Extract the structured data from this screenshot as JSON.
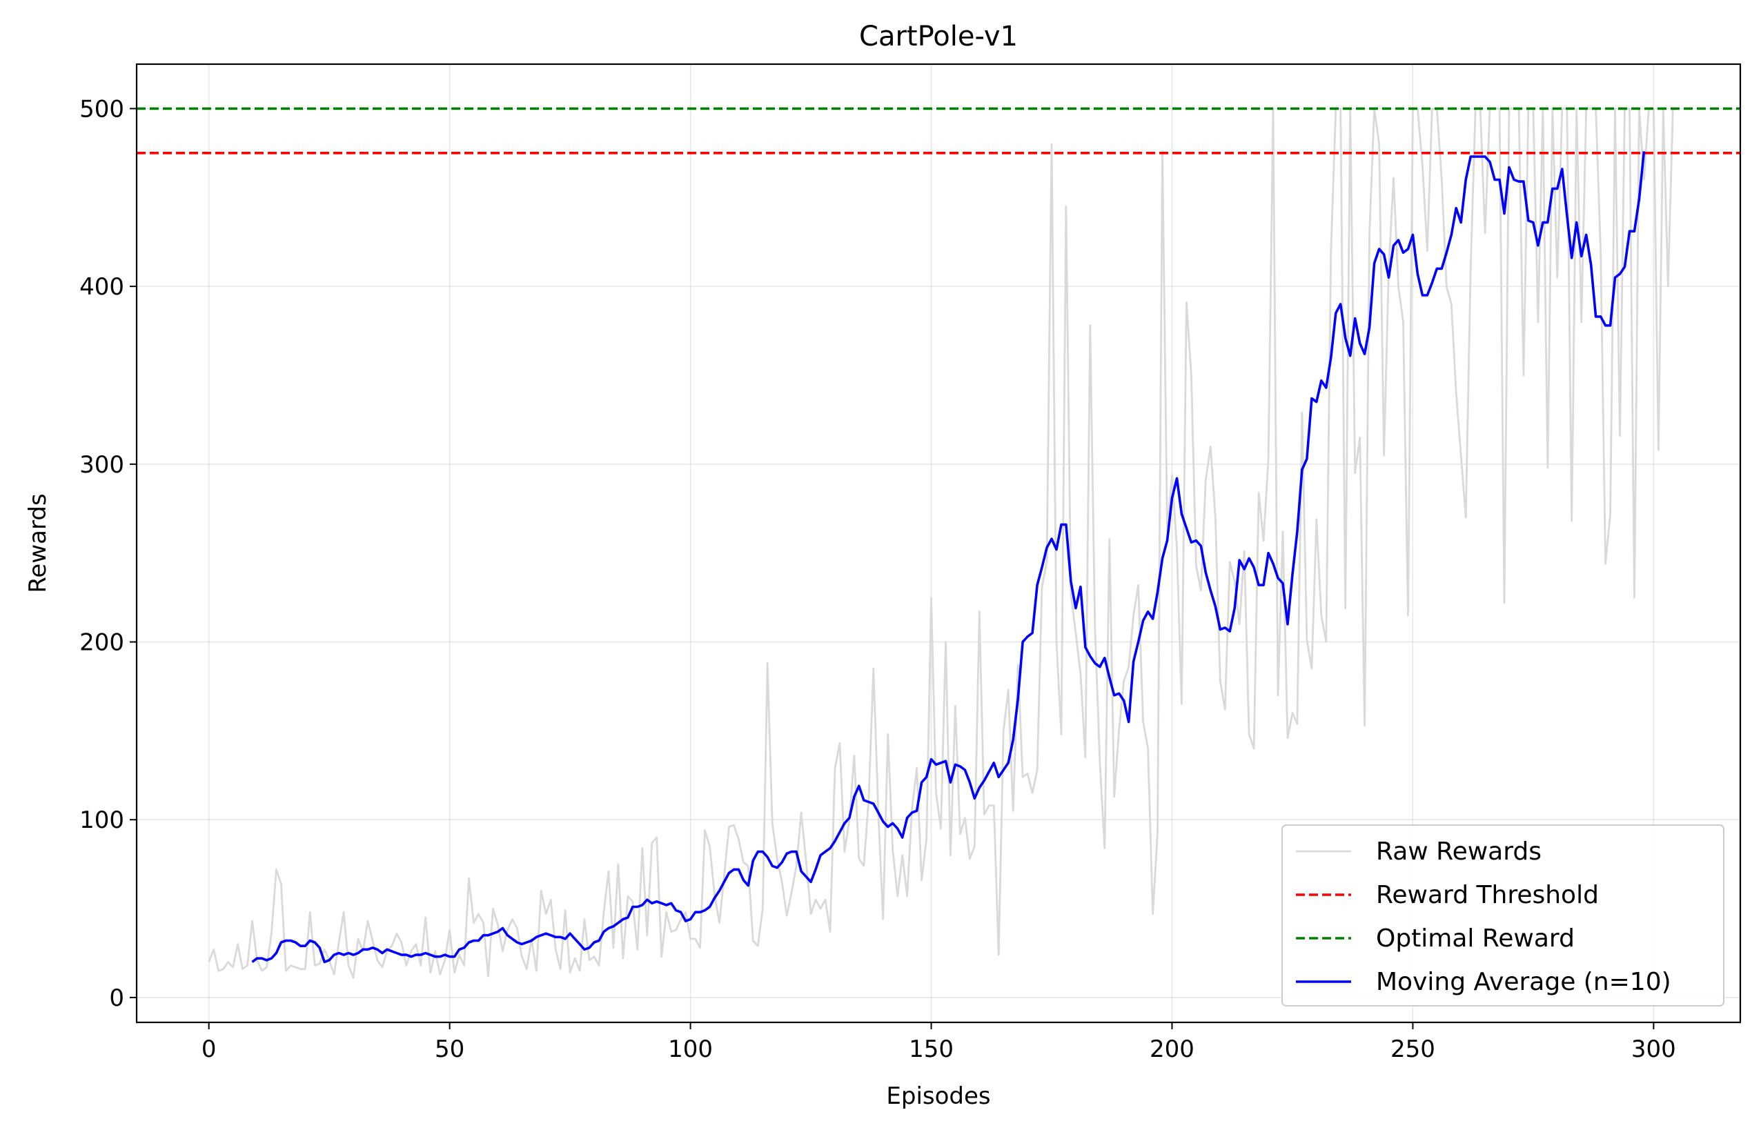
{
  "chart_data": {
    "type": "line",
    "title": "CartPole-v1",
    "xlabel": "Episodes",
    "ylabel": "Rewards",
    "xlim": [
      -15,
      318
    ],
    "ylim": [
      -14,
      525
    ],
    "x_ticks": [
      0,
      50,
      100,
      150,
      200,
      250,
      300
    ],
    "y_ticks": [
      0,
      100,
      200,
      300,
      400,
      500
    ],
    "grid": true,
    "legend_position": "bottom-right",
    "series": [
      {
        "name": "Raw Rewards",
        "style": "solid",
        "color": "#d9d9d9",
        "x_start": 0,
        "values": [
          20,
          27,
          15,
          16,
          20,
          17,
          30,
          16,
          18,
          43,
          21,
          15,
          17,
          36,
          72,
          64,
          15,
          18,
          17,
          16,
          16,
          48,
          18,
          19,
          27,
          21,
          13,
          31,
          48,
          18,
          11,
          33,
          26,
          43,
          32,
          21,
          17,
          26,
          29,
          36,
          31,
          18,
          26,
          30,
          18,
          45,
          14,
          26,
          13,
          21,
          38,
          14,
          24,
          18,
          67,
          42,
          47,
          42,
          12,
          50,
          41,
          26,
          38,
          44,
          39,
          23,
          16,
          33,
          15,
          60,
          47,
          55,
          27,
          16,
          49,
          14,
          22,
          15,
          44,
          21,
          23,
          18,
          48,
          71,
          28,
          75,
          22,
          57,
          54,
          27,
          84,
          35,
          87,
          90,
          23,
          48,
          37,
          38,
          44,
          48,
          33,
          33,
          28,
          94,
          85,
          58,
          42,
          68,
          96,
          97,
          89,
          76,
          74,
          32,
          29,
          50,
          188,
          98,
          78,
          65,
          46,
          59,
          74,
          104,
          77,
          47,
          55,
          50,
          55,
          37,
          129,
          143,
          82,
          100,
          136,
          78,
          74,
          111,
          185,
          104,
          44,
          148,
          83,
          57,
          80,
          57,
          106,
          129,
          66,
          89,
          225,
          115,
          95,
          200,
          80,
          164,
          92,
          101,
          78,
          85,
          217,
          103,
          108,
          108,
          24,
          150,
          173,
          105,
          187,
          124,
          126,
          115,
          128,
          231,
          245,
          480,
          200,
          148,
          445,
          227,
          205,
          182,
          135,
          378,
          208,
          133,
          84,
          258,
          113,
          151,
          178,
          186,
          215,
          232,
          155,
          140,
          47,
          93,
          476,
          263,
          294,
          253,
          165,
          391,
          350,
          243,
          229,
          291,
          310,
          270,
          178,
          162,
          245,
          234,
          210,
          251,
          148,
          140,
          284,
          257,
          303,
          500,
          170,
          262,
          146,
          160,
          154,
          329,
          201,
          185,
          269,
          215,
          200,
          420,
          500,
          500,
          219,
          500,
          295,
          315,
          153,
          430,
          500,
          480,
          305,
          410,
          461,
          400,
          380,
          215,
          500,
          500,
          468,
          420,
          500,
          500,
          460,
          400,
          390,
          340,
          305,
          270,
          410,
          500,
          500,
          430,
          500,
          500,
          500,
          222,
          500,
          500,
          500,
          350,
          500,
          500,
          380,
          500,
          298,
          500,
          405,
          500,
          500,
          268,
          500,
          380,
          500,
          500,
          500,
          420,
          244,
          272,
          500,
          316,
          500,
          500,
          225,
          500,
          460,
          500,
          500,
          308,
          500,
          400,
          500,
          500
        ]
      },
      {
        "name": "Reward Threshold",
        "style": "dashed",
        "color": "#ff0000",
        "y": 475
      },
      {
        "name": "Optimal Reward",
        "style": "dashed",
        "color": "#008000",
        "y": 500
      },
      {
        "name": "Moving Average (n=10)",
        "style": "solid",
        "color": "#0000ff",
        "x_start": 9,
        "values": [
          20,
          22,
          22,
          21,
          22,
          25,
          31,
          32,
          32,
          31,
          29,
          29,
          32,
          31,
          28,
          20,
          21,
          24,
          25,
          24,
          25,
          24,
          25,
          27,
          27,
          28,
          27,
          25,
          27,
          26,
          25,
          24,
          24,
          23,
          24,
          24,
          25,
          24,
          23,
          23,
          24,
          23,
          23,
          27,
          28,
          31,
          32,
          32,
          35,
          35,
          36,
          37,
          39,
          35,
          33,
          31,
          30,
          31,
          32,
          34,
          35,
          36,
          35,
          34,
          34,
          33,
          36,
          33,
          30,
          27,
          28,
          31,
          32,
          37,
          39,
          40,
          42,
          44,
          45,
          51,
          51,
          52,
          55,
          53,
          54,
          53,
          52,
          53,
          49,
          48,
          43,
          44,
          48,
          48,
          49,
          51,
          56,
          60,
          65,
          70,
          72,
          72,
          66,
          63,
          77,
          82,
          82,
          79,
          74,
          73,
          76,
          81,
          82,
          82,
          71,
          68,
          65,
          72,
          80,
          82,
          84,
          88,
          93,
          98,
          101,
          113,
          119,
          111,
          110,
          109,
          104,
          99,
          96,
          98,
          95,
          90,
          101,
          104,
          105,
          121,
          124,
          134,
          131,
          132,
          133,
          121,
          131,
          130,
          128,
          121,
          112,
          118,
          122,
          127,
          132,
          124,
          128,
          132,
          145,
          168,
          200,
          203,
          205,
          232,
          242,
          253,
          258,
          252,
          266,
          266,
          234,
          219,
          231,
          197,
          192,
          188,
          186,
          191,
          180,
          170,
          171,
          167,
          155,
          189,
          200,
          212,
          217,
          213,
          228,
          247,
          257,
          281,
          292,
          272,
          264,
          256,
          257,
          254,
          239,
          229,
          220,
          207,
          208,
          206,
          219,
          246,
          241,
          247,
          242,
          232,
          232,
          250,
          244,
          236,
          233,
          210,
          238,
          262,
          297,
          303,
          337,
          335,
          347,
          343,
          360,
          385,
          390,
          371,
          361,
          382,
          368,
          362,
          377,
          413,
          421,
          418,
          405,
          423,
          426,
          419,
          421,
          429,
          407,
          395,
          395,
          402,
          410,
          410,
          419,
          429,
          444,
          436,
          460,
          473,
          473,
          473,
          473,
          470,
          460,
          460,
          441,
          467,
          460,
          459,
          459,
          437,
          436,
          423,
          436,
          436,
          455,
          455,
          466,
          440,
          416,
          436,
          417,
          429,
          412,
          383,
          383,
          378,
          378,
          405,
          407,
          411,
          431,
          431,
          449,
          476
        ]
      }
    ]
  }
}
